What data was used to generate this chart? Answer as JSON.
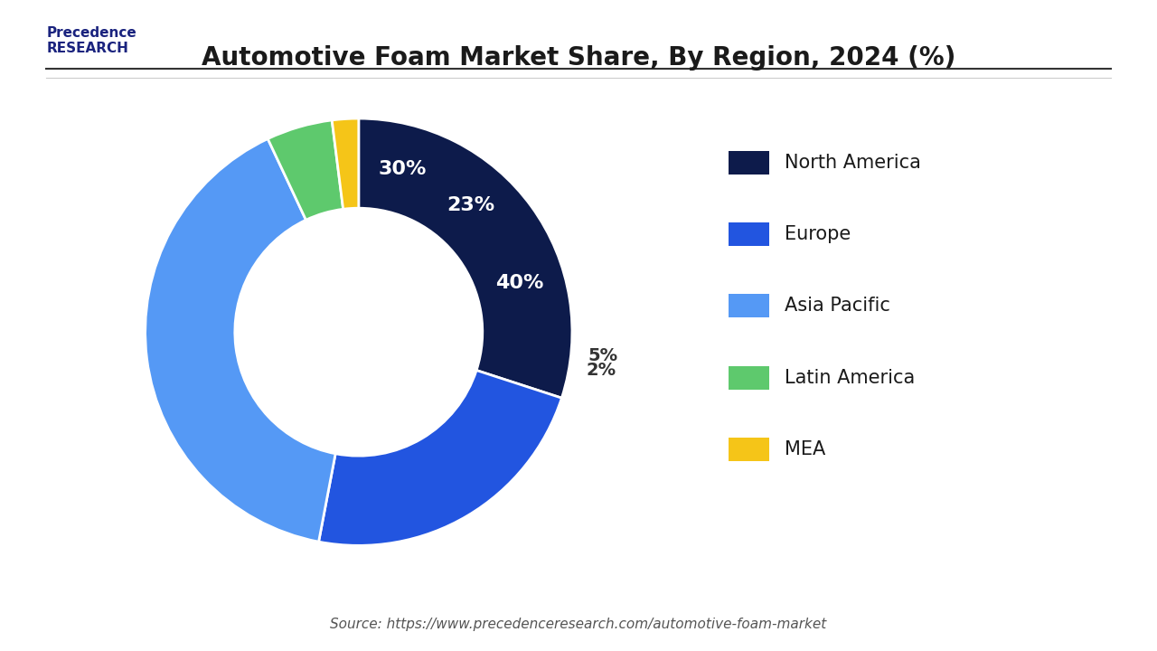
{
  "title": "Automotive Foam Market Share, By Region, 2024 (%)",
  "labels": [
    "North America",
    "Europe",
    "Asia Pacific",
    "Latin America",
    "MEA"
  ],
  "values": [
    30,
    23,
    40,
    5,
    2
  ],
  "colors": [
    "#0d1b4b",
    "#2255e0",
    "#5599f5",
    "#5ec96d",
    "#f5c518"
  ],
  "pct_labels": [
    "30%",
    "23%",
    "40%",
    "5%",
    "2%"
  ],
  "source": "Source: https://www.precedenceresearch.com/automotive-foam-market",
  "legend_labels": [
    "North America",
    "Europe",
    "Asia Pacific",
    "Latin America",
    "MEA"
  ],
  "background_color": "#ffffff",
  "title_fontsize": 20,
  "label_fontsize": 16,
  "legend_fontsize": 15,
  "donut_width": 0.42
}
